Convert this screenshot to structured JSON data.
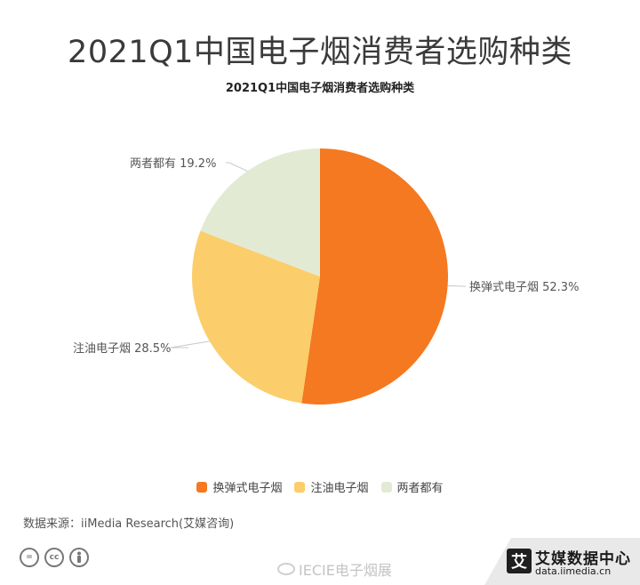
{
  "header": {
    "title": "2021Q1中国电子烟消费者选购种类"
  },
  "chart_data": {
    "type": "pie",
    "title": "2021Q1中国电子烟消费者选购种类",
    "slices": [
      {
        "name": "换弹式电子烟",
        "value": 52.3,
        "label": "换弹式电子烟 52.3%",
        "color": "#f47920"
      },
      {
        "name": "注油电子烟",
        "value": 28.5,
        "label": "注油电子烟 28.5%",
        "color": "#fbce6b"
      },
      {
        "name": "两者都有",
        "value": 19.2,
        "label": "两者都有 19.2%",
        "color": "#e3ead4"
      }
    ],
    "legend": [
      "换弹式电子烟",
      "注油电子烟",
      "两者都有"
    ],
    "legend_position": "bottom"
  },
  "footer": {
    "source": "数据来源：iiMedia Research(艾媒咨询)",
    "watermark": "IECIE电子烟展",
    "brand_logo_char": "艾",
    "brand_name": "艾媒数据中心",
    "brand_url": "data.iimedia.cn",
    "cc_icons": [
      "=",
      "cc",
      "person-icon"
    ]
  }
}
